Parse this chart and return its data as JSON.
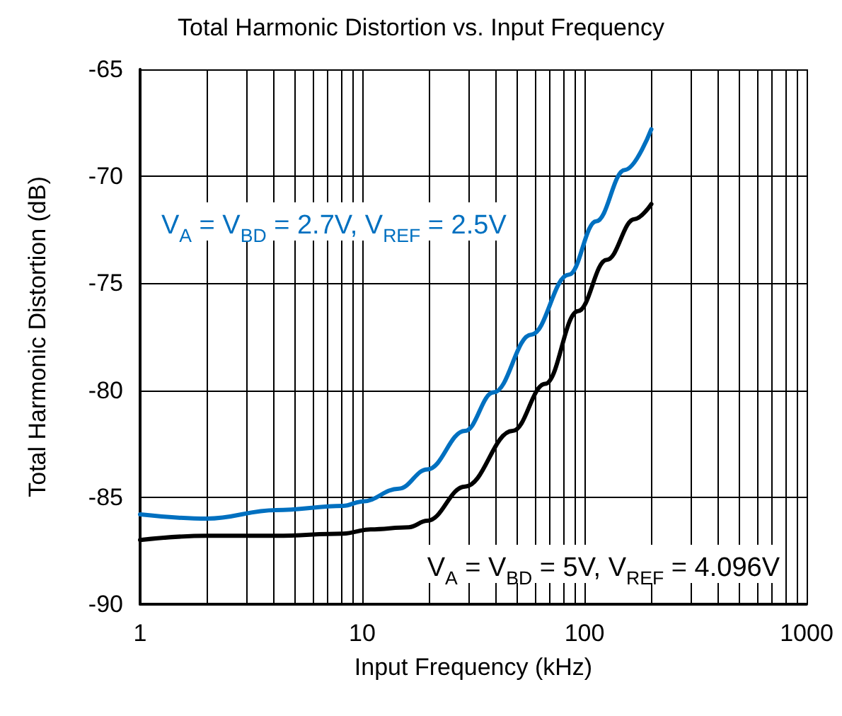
{
  "chart_data": {
    "type": "line",
    "title": "Total Harmonic Distortion vs. Input Frequency",
    "xlabel": "Input Frequency (kHz)",
    "ylabel": "Total Harmonic Distortion (dB)",
    "log": "x",
    "grid": true,
    "marker": "none",
    "xlim": [
      1,
      1000
    ],
    "xticks": [
      1,
      10,
      100,
      1000
    ],
    "ylim": [
      -90,
      -65
    ],
    "yticks": [
      -90,
      -85,
      -80,
      -75,
      -70,
      -65
    ],
    "series": [
      {
        "name": "V$_{A}$ = V$_{BD}$ = 2.7V, V$_{REF}$ = 2.5V",
        "color": "#0070c0",
        "x": [
          1,
          2,
          4.1,
          8.2,
          10,
          14.6,
          19.6,
          29,
          39,
          57.6,
          85,
          113,
          152,
          200
        ],
        "values": [
          -85.8,
          -86.0,
          -85.6,
          -85.4,
          -85.2,
          -84.6,
          -83.7,
          -81.9,
          -80.1,
          -77.4,
          -74.6,
          -72.1,
          -69.7,
          -67.8
        ]
      },
      {
        "name": "V$_{A}$ = V$_{BD}$ = 5V, V$_{REF}$ = 4.096V",
        "color": "#000000",
        "x": [
          1,
          2,
          4.1,
          8.2,
          10.9,
          16.2,
          19.6,
          29,
          47.5,
          66.6,
          93.5,
          126,
          168,
          200
        ],
        "values": [
          -87.0,
          -86.8,
          -86.8,
          -86.7,
          -86.5,
          -86.4,
          -86.1,
          -84.5,
          -81.9,
          -79.7,
          -76.3,
          -73.9,
          -72.0,
          -71.3
        ]
      }
    ]
  }
}
